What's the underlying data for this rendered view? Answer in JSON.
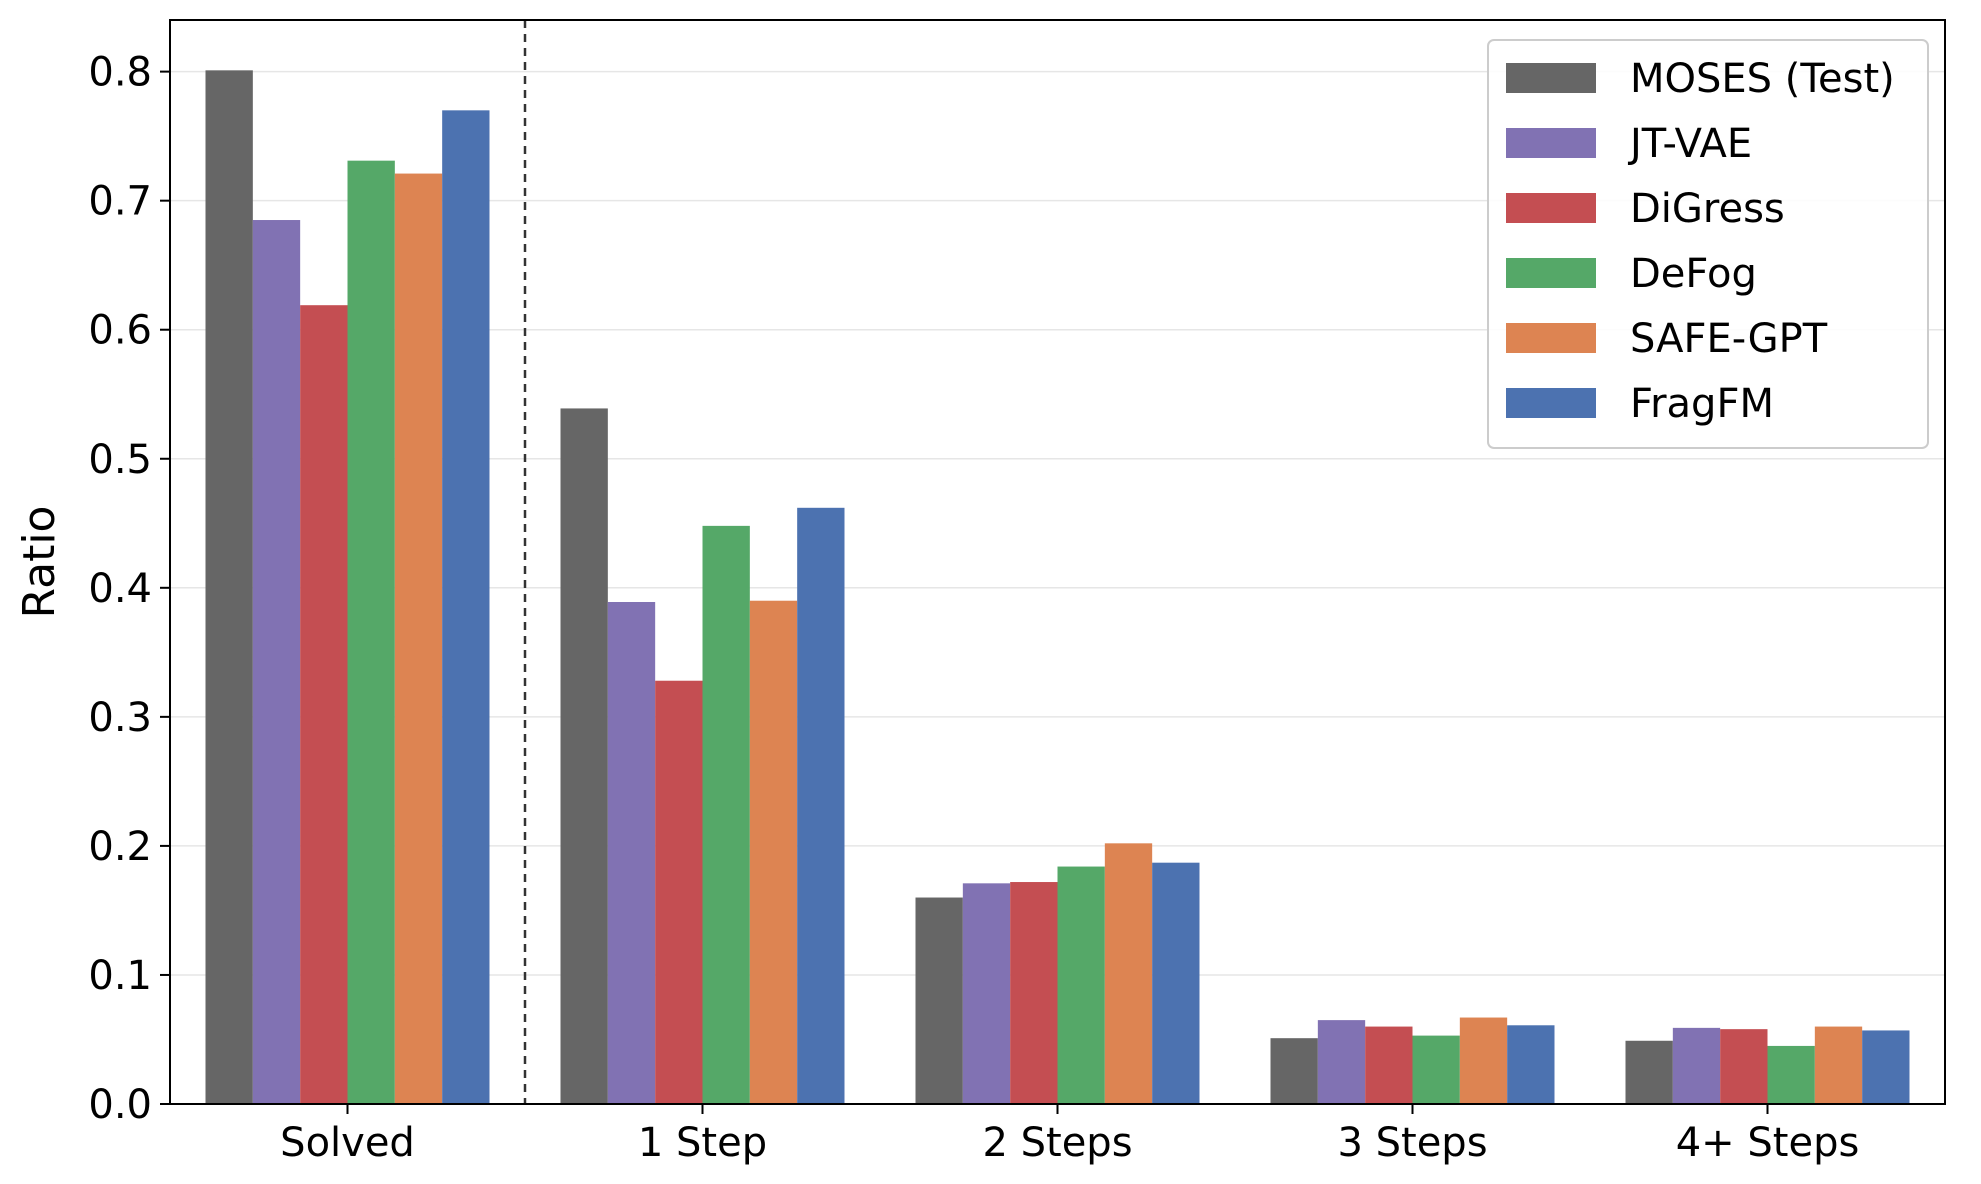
{
  "chart_data": {
    "type": "bar",
    "title": "",
    "xlabel": "",
    "ylabel": "Ratio",
    "ylim": [
      0,
      0.84
    ],
    "yticks": [
      0.0,
      0.1,
      0.2,
      0.3,
      0.4,
      0.5,
      0.6,
      0.7,
      0.8
    ],
    "grid": "horizontal",
    "legend_position": "top-right",
    "categories": [
      "Solved",
      "1 Step",
      "2 Steps",
      "3 Steps",
      "4+ Steps"
    ],
    "separator_after_category": "Solved",
    "series": [
      {
        "name": "MOSES (Test)",
        "color": "#666666",
        "values": [
          0.801,
          0.539,
          0.16,
          0.051,
          0.049
        ]
      },
      {
        "name": "JT-VAE",
        "color": "#8172b3",
        "values": [
          0.685,
          0.389,
          0.171,
          0.065,
          0.059
        ]
      },
      {
        "name": "DiGress",
        "color": "#c44e52",
        "values": [
          0.619,
          0.328,
          0.172,
          0.06,
          0.058
        ]
      },
      {
        "name": "DeFog",
        "color": "#55a868",
        "values": [
          0.731,
          0.448,
          0.184,
          0.053,
          0.045
        ]
      },
      {
        "name": "SAFE-GPT",
        "color": "#dd8452",
        "values": [
          0.721,
          0.39,
          0.202,
          0.067,
          0.06
        ]
      },
      {
        "name": "FragFM",
        "color": "#4c72b0",
        "values": [
          0.77,
          0.462,
          0.187,
          0.061,
          0.057
        ]
      }
    ]
  }
}
